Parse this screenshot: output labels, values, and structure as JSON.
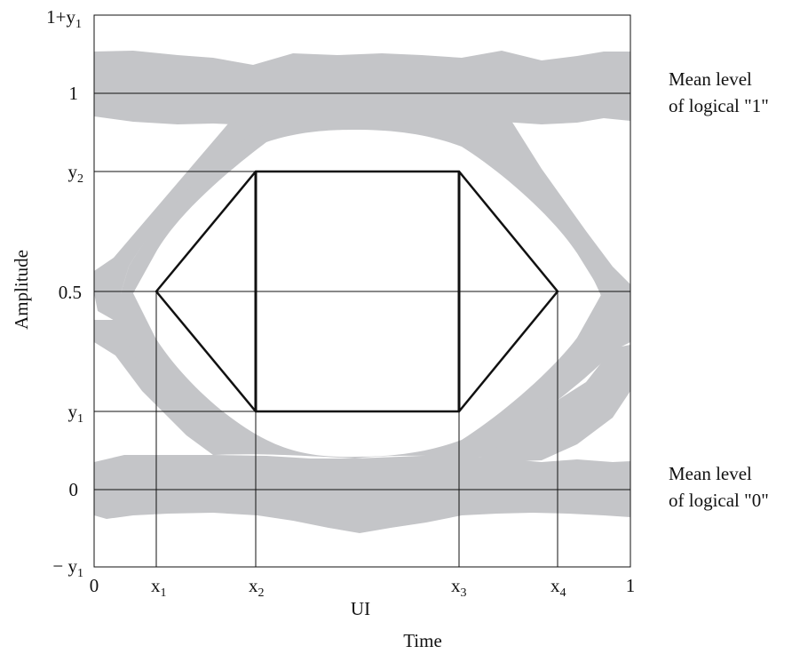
{
  "y_ticks": {
    "one_plus_y1": {
      "main": "1+y",
      "sub": "1"
    },
    "one": "1",
    "y2": {
      "main": "y",
      "sub": "2"
    },
    "half": "0.5",
    "y1": {
      "main": "y",
      "sub": "1"
    },
    "zero": "0",
    "minus_y1": {
      "main": "− y",
      "sub": "1"
    }
  },
  "x_ticks": {
    "zero": "0",
    "x1": {
      "main": "x",
      "sub": "1"
    },
    "x2": {
      "main": "x",
      "sub": "2"
    },
    "x3": {
      "main": "x",
      "sub": "3"
    },
    "x4": {
      "main": "x",
      "sub": "4"
    },
    "one": "1"
  },
  "axes": {
    "y_title": "Amplitude",
    "x_unit": "UI",
    "x_title": "Time"
  },
  "annotations": {
    "level_one": [
      "Mean level",
      "of logical \"1\""
    ],
    "level_zero": [
      "Mean level",
      "of logical \"0\""
    ]
  },
  "colors": {
    "band": "#c4c5c8",
    "line": "#111111"
  }
}
